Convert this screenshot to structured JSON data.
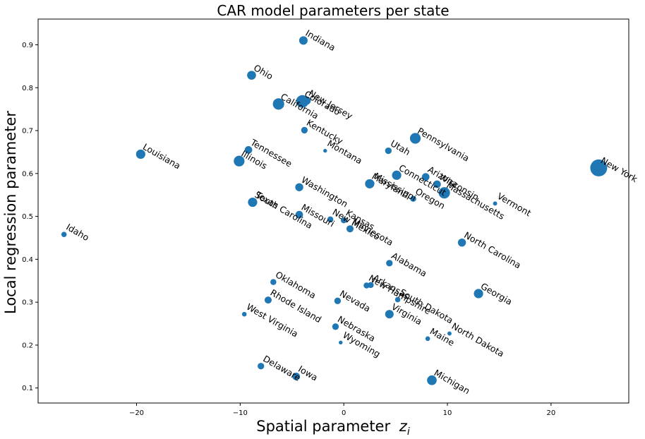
{
  "chart_data": {
    "type": "scatter",
    "title": "CAR model parameters per state",
    "xlabel": "Spatial parameter",
    "xlabel_sub": "i",
    "ylabel": "Local regression parameter",
    "xlim": [
      -29.5,
      27.5
    ],
    "ylim": [
      0.065,
      0.96
    ],
    "xticks": [
      -20,
      -10,
      0,
      10,
      20
    ],
    "yticks": [
      0.1,
      0.2,
      0.3,
      0.4,
      0.5,
      0.6,
      0.7,
      0.8,
      0.9
    ],
    "grid": false,
    "point_color": "#1f77b4",
    "points": [
      {
        "label": "Indiana",
        "x": -3.9,
        "y": 0.91,
        "size": 50
      },
      {
        "label": "Ohio",
        "x": -8.9,
        "y": 0.829,
        "size": 55
      },
      {
        "label": "California",
        "x": -6.3,
        "y": 0.762,
        "size": 90
      },
      {
        "label": "Colorado",
        "x": -4.0,
        "y": 0.768,
        "size": 110
      },
      {
        "label": "New Jersey",
        "x": -3.6,
        "y": 0.77,
        "size": 50
      },
      {
        "label": "Kentucky",
        "x": -3.8,
        "y": 0.701,
        "size": 30
      },
      {
        "label": "Montana",
        "x": -1.8,
        "y": 0.653,
        "size": 10
      },
      {
        "label": "Tennessee",
        "x": -9.2,
        "y": 0.655,
        "size": 40
      },
      {
        "label": "Illinois",
        "x": -10.1,
        "y": 0.629,
        "size": 80
      },
      {
        "label": "Louisiana",
        "x": -19.6,
        "y": 0.645,
        "size": 60
      },
      {
        "label": "Pennsylvania",
        "x": 6.9,
        "y": 0.682,
        "size": 80
      },
      {
        "label": "Utah",
        "x": 4.3,
        "y": 0.653,
        "size": 30
      },
      {
        "label": "Connecticut",
        "x": 5.1,
        "y": 0.596,
        "size": 60
      },
      {
        "label": "Arizona",
        "x": 7.9,
        "y": 0.592,
        "size": 40
      },
      {
        "label": "Wisconsin",
        "x": 9.0,
        "y": 0.575,
        "size": 40
      },
      {
        "label": "Massachusetts",
        "x": 9.7,
        "y": 0.555,
        "size": 90
      },
      {
        "label": "Vermont",
        "x": 14.6,
        "y": 0.53,
        "size": 12
      },
      {
        "label": "New York",
        "x": 24.6,
        "y": 0.613,
        "size": 200
      },
      {
        "label": "Maryland",
        "x": 2.5,
        "y": 0.576,
        "size": 60
      },
      {
        "label": "Mississippi",
        "x": 2.7,
        "y": 0.577,
        "size": 20
      },
      {
        "label": "Oregon",
        "x": 6.7,
        "y": 0.541,
        "size": 25
      },
      {
        "label": "Washington",
        "x": -4.3,
        "y": 0.568,
        "size": 45
      },
      {
        "label": "South Carolina",
        "x": -8.8,
        "y": 0.533,
        "size": 60
      },
      {
        "label": "Texas",
        "x": -8.7,
        "y": 0.533,
        "size": 30
      },
      {
        "label": "Missouri",
        "x": -4.3,
        "y": 0.504,
        "size": 40
      },
      {
        "label": "New Mexico",
        "x": -1.3,
        "y": 0.493,
        "size": 25
      },
      {
        "label": "Kansas",
        "x": 0.0,
        "y": 0.491,
        "size": 25
      },
      {
        "label": "Minnesota",
        "x": 0.6,
        "y": 0.471,
        "size": 35
      },
      {
        "label": "Idaho",
        "x": -27.0,
        "y": 0.458,
        "size": 20
      },
      {
        "label": "North Carolina",
        "x": 11.4,
        "y": 0.439,
        "size": 45
      },
      {
        "label": "Alabama",
        "x": 4.4,
        "y": 0.391,
        "size": 30
      },
      {
        "label": "New Hampshire",
        "x": 2.2,
        "y": 0.339,
        "size": 25
      },
      {
        "label": "Arkansas",
        "x": 2.6,
        "y": 0.34,
        "size": 25
      },
      {
        "label": "South Dakota",
        "x": 5.2,
        "y": 0.306,
        "size": 20
      },
      {
        "label": "North Dakota",
        "x": 10.2,
        "y": 0.227,
        "size": 12
      },
      {
        "label": "Georgia",
        "x": 13.0,
        "y": 0.32,
        "size": 60
      },
      {
        "label": "Oklahoma",
        "x": -6.8,
        "y": 0.347,
        "size": 25
      },
      {
        "label": "Rhode Island",
        "x": -7.3,
        "y": 0.305,
        "size": 35
      },
      {
        "label": "West Virginia",
        "x": -9.6,
        "y": 0.272,
        "size": 15
      },
      {
        "label": "Nevada",
        "x": -0.6,
        "y": 0.303,
        "size": 30
      },
      {
        "label": "Virginia",
        "x": 4.4,
        "y": 0.272,
        "size": 50
      },
      {
        "label": "Nebraska",
        "x": -0.8,
        "y": 0.243,
        "size": 30
      },
      {
        "label": "Wyoming",
        "x": -0.3,
        "y": 0.206,
        "size": 10
      },
      {
        "label": "Maine",
        "x": 8.1,
        "y": 0.215,
        "size": 15
      },
      {
        "label": "Delaware",
        "x": -8.0,
        "y": 0.151,
        "size": 30
      },
      {
        "label": "Iowa",
        "x": -4.6,
        "y": 0.127,
        "size": 40
      },
      {
        "label": "Michigan",
        "x": 8.5,
        "y": 0.118,
        "size": 65
      }
    ]
  }
}
